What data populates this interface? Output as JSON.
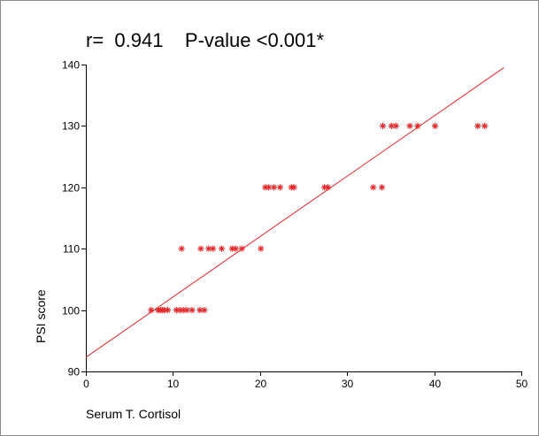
{
  "chart_data": {
    "type": "scatter",
    "title": "r=  0.941    P-value <0.001*",
    "xlabel": "Serum T. Cortisol",
    "ylabel": "PSI score",
    "xlim": [
      0,
      50
    ],
    "ylim": [
      90,
      140
    ],
    "xticks": [
      0,
      10,
      20,
      30,
      40,
      50
    ],
    "yticks": [
      90,
      100,
      110,
      120,
      130,
      140
    ],
    "grid": false,
    "series": [
      {
        "marker": "asterisk",
        "color": "#e8282a",
        "points": [
          [
            7.5,
            100
          ],
          [
            8.3,
            100
          ],
          [
            8.6,
            100
          ],
          [
            8.8,
            100
          ],
          [
            9.0,
            100
          ],
          [
            9.4,
            100
          ],
          [
            10.4,
            100
          ],
          [
            10.8,
            100
          ],
          [
            11.2,
            100
          ],
          [
            11.6,
            100
          ],
          [
            12.2,
            100
          ],
          [
            13.1,
            100
          ],
          [
            13.6,
            100
          ],
          [
            11.0,
            110
          ],
          [
            13.2,
            110
          ],
          [
            14.1,
            110
          ],
          [
            14.6,
            110
          ],
          [
            15.6,
            110
          ],
          [
            16.8,
            110
          ],
          [
            17.2,
            110
          ],
          [
            17.9,
            110
          ],
          [
            20.1,
            110
          ],
          [
            20.6,
            120
          ],
          [
            21.0,
            120
          ],
          [
            21.6,
            120
          ],
          [
            22.3,
            120
          ],
          [
            23.6,
            120
          ],
          [
            23.9,
            120
          ],
          [
            27.4,
            120
          ],
          [
            27.8,
            120
          ],
          [
            33.0,
            120
          ],
          [
            34.0,
            120
          ],
          [
            34.1,
            130
          ],
          [
            35.1,
            130
          ],
          [
            35.6,
            130
          ],
          [
            37.2,
            130
          ],
          [
            38.1,
            130
          ],
          [
            40.1,
            130
          ],
          [
            45.0,
            130
          ],
          [
            45.8,
            130
          ]
        ]
      }
    ],
    "fit_line": {
      "color": "#e8282a",
      "x": [
        0,
        48
      ],
      "y": [
        92.3,
        139.5
      ]
    }
  }
}
